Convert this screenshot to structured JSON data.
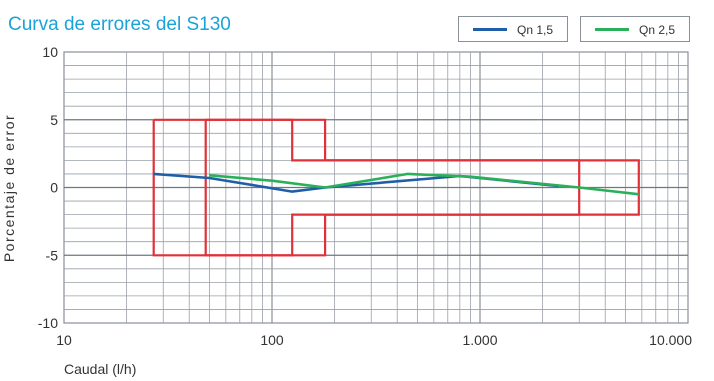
{
  "chart_data": {
    "type": "line",
    "title": "Curva de errores del S130",
    "xlabel": "Caudal (l/h)",
    "ylabel": "Porcentaje de error",
    "x_scale": "log",
    "xlim": [
      10,
      10000
    ],
    "ylim": [
      -10,
      10
    ],
    "x_tick_labels": [
      "10",
      "100",
      "1.000",
      "10.000"
    ],
    "y_tick_labels": [
      "10",
      "5",
      "0",
      "-5",
      "-10"
    ],
    "grid": true,
    "legend_position": "top-right",
    "series": [
      {
        "name": "Qn 1,5",
        "color": "#1f5fa8",
        "x": [
          27,
          50,
          125,
          180,
          800,
          2400
        ],
        "y": [
          1.0,
          0.7,
          -0.3,
          0.0,
          0.85,
          0.1
        ]
      },
      {
        "name": "Qn 2,5",
        "color": "#2bb05a",
        "x": [
          50,
          100,
          180,
          450,
          900,
          3000,
          5800
        ],
        "y": [
          0.9,
          0.5,
          0.0,
          1.0,
          0.8,
          0.0,
          -0.5
        ]
      }
    ],
    "tolerance_envelopes": {
      "color": "#e0313a",
      "outlines": [
        {
          "x": [
            27,
            180,
            180,
            3000,
            3000,
            180,
            180,
            27,
            27
          ],
          "y": [
            5,
            5,
            2,
            2,
            -2,
            -2,
            -5,
            -5,
            5
          ]
        },
        {
          "x": [
            48,
            125,
            125,
            5800,
            5800,
            125,
            125,
            48,
            48
          ],
          "y": [
            5,
            5,
            2,
            2,
            -2,
            -2,
            -5,
            -5,
            5
          ]
        }
      ]
    }
  }
}
